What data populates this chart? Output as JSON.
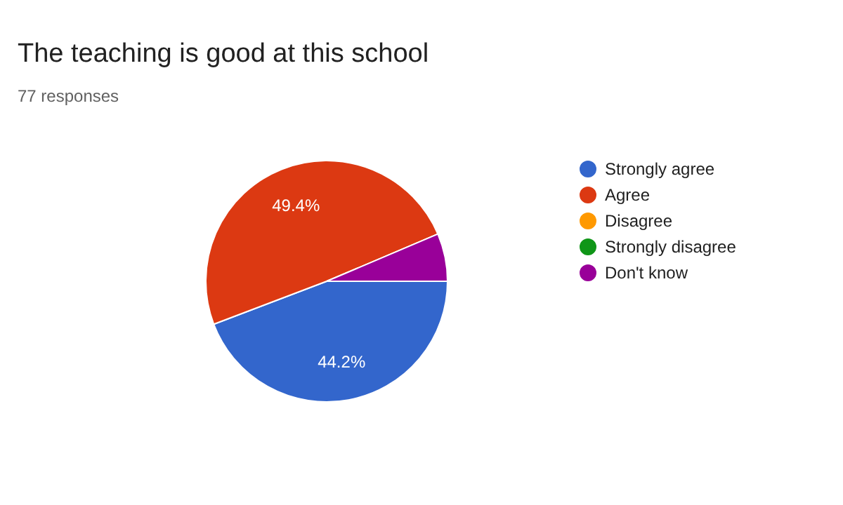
{
  "chart_data": {
    "type": "pie",
    "title": "The teaching is good at this school",
    "subtitle": "77 responses",
    "categories": [
      "Strongly agree",
      "Agree",
      "Disagree",
      "Strongly disagree",
      "Don't know"
    ],
    "values": [
      44.2,
      49.4,
      0,
      0,
      6.4
    ],
    "colors": [
      "#3366cc",
      "#dc3912",
      "#ff9900",
      "#109618",
      "#990099"
    ],
    "value_labels": [
      "44.2%",
      "49.4%",
      null,
      null,
      null
    ],
    "legend": "right"
  }
}
